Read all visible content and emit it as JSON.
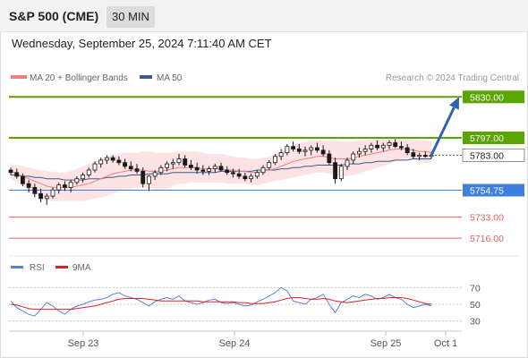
{
  "header": {
    "instrument": "S&P 500 (CME)",
    "timeframe": "30 MIN",
    "datetime": "Wednesday, September 25, 2024 7:11:40 AM CET"
  },
  "legend": {
    "ma20_label": "MA 20 + Bollinger Bands",
    "ma50_label": "MA 50",
    "credit": "Research © 2024 Trading Central",
    "rsi_label": "RSI",
    "rsi_ma_label": "9MA"
  },
  "colors": {
    "candle": "#1a1a1a",
    "ma20": "#f08080",
    "ma50": "#3b5b92",
    "bollinger_fill": "#fde3e3",
    "resistance": "#5aa500",
    "support_blue": "#3f7fe0",
    "support_red": "#e06060",
    "arrow": "#2e63b0",
    "rsi": "#5a7fd6",
    "rsi_ma": "#e02020"
  },
  "chart_data": [
    {
      "type": "candlestick",
      "title": "",
      "ylim": [
        5706,
        5836
      ],
      "x_ticks": [
        "Sep 23",
        "Sep 24",
        "Sep 25",
        "Oct 1"
      ],
      "levels": [
        {
          "value": 5830.0,
          "label": "5830.00",
          "kind": "resistance"
        },
        {
          "value": 5797.0,
          "label": "5797.00",
          "kind": "resistance"
        },
        {
          "value": 5783.0,
          "label": "5783.00",
          "kind": "last"
        },
        {
          "value": 5754.75,
          "label": "5754.75",
          "kind": "support_strong"
        },
        {
          "value": 5733.0,
          "label": "5733.00",
          "kind": "support"
        },
        {
          "value": 5716.0,
          "label": "5716.00",
          "kind": "support"
        }
      ],
      "forecast": {
        "from": 5783.0,
        "to": 5830.0
      },
      "candles": [
        [
          5771,
          5773,
          5767,
          5769
        ],
        [
          5769,
          5772,
          5764,
          5766
        ],
        [
          5766,
          5768,
          5758,
          5760
        ],
        [
          5760,
          5763,
          5753,
          5757
        ],
        [
          5757,
          5760,
          5749,
          5752
        ],
        [
          5752,
          5756,
          5745,
          5748
        ],
        [
          5748,
          5752,
          5743,
          5750
        ],
        [
          5750,
          5757,
          5748,
          5755
        ],
        [
          5755,
          5761,
          5752,
          5759
        ],
        [
          5759,
          5762,
          5754,
          5757
        ],
        [
          5757,
          5763,
          5753,
          5761
        ],
        [
          5761,
          5766,
          5759,
          5764
        ],
        [
          5764,
          5769,
          5761,
          5767
        ],
        [
          5767,
          5773,
          5765,
          5771
        ],
        [
          5771,
          5778,
          5769,
          5776
        ],
        [
          5776,
          5781,
          5773,
          5779
        ],
        [
          5779,
          5783,
          5776,
          5781
        ],
        [
          5781,
          5783,
          5777,
          5779
        ],
        [
          5779,
          5782,
          5775,
          5777
        ],
        [
          5777,
          5780,
          5772,
          5774
        ],
        [
          5774,
          5778,
          5770,
          5772
        ],
        [
          5772,
          5776,
          5768,
          5770
        ],
        [
          5770,
          5773,
          5757,
          5760
        ],
        [
          5760,
          5767,
          5754,
          5766
        ],
        [
          5766,
          5771,
          5763,
          5769
        ],
        [
          5769,
          5775,
          5767,
          5773
        ],
        [
          5773,
          5778,
          5770,
          5776
        ],
        [
          5776,
          5780,
          5772,
          5777
        ],
        [
          5777,
          5784,
          5775,
          5780
        ],
        [
          5780,
          5783,
          5773,
          5775
        ],
        [
          5775,
          5779,
          5771,
          5773
        ],
        [
          5773,
          5777,
          5768,
          5771
        ],
        [
          5771,
          5775,
          5767,
          5770
        ],
        [
          5770,
          5774,
          5767,
          5772
        ],
        [
          5772,
          5776,
          5769,
          5774
        ],
        [
          5774,
          5777,
          5770,
          5771
        ],
        [
          5771,
          5774,
          5767,
          5769
        ],
        [
          5769,
          5772,
          5765,
          5768
        ],
        [
          5768,
          5772,
          5764,
          5766
        ],
        [
          5766,
          5769,
          5762,
          5764
        ],
        [
          5764,
          5768,
          5761,
          5766
        ],
        [
          5766,
          5771,
          5764,
          5769
        ],
        [
          5769,
          5775,
          5767,
          5773
        ],
        [
          5773,
          5779,
          5771,
          5777
        ],
        [
          5777,
          5784,
          5775,
          5782
        ],
        [
          5782,
          5788,
          5779,
          5785
        ],
        [
          5785,
          5792,
          5783,
          5790
        ],
        [
          5790,
          5794,
          5786,
          5788
        ],
        [
          5788,
          5792,
          5784,
          5786
        ],
        [
          5786,
          5790,
          5782,
          5787
        ],
        [
          5787,
          5791,
          5783,
          5789
        ],
        [
          5789,
          5793,
          5785,
          5787
        ],
        [
          5787,
          5791,
          5782,
          5784
        ],
        [
          5784,
          5787,
          5775,
          5777
        ],
        [
          5777,
          5781,
          5760,
          5764
        ],
        [
          5764,
          5776,
          5762,
          5774
        ],
        [
          5774,
          5781,
          5771,
          5779
        ],
        [
          5779,
          5786,
          5776,
          5784
        ],
        [
          5784,
          5789,
          5781,
          5786
        ],
        [
          5786,
          5791,
          5783,
          5788
        ],
        [
          5788,
          5793,
          5785,
          5791
        ],
        [
          5791,
          5795,
          5787,
          5789
        ],
        [
          5789,
          5793,
          5786,
          5791
        ],
        [
          5791,
          5795,
          5788,
          5793
        ],
        [
          5793,
          5796,
          5789,
          5790
        ],
        [
          5790,
          5794,
          5787,
          5789
        ],
        [
          5789,
          5792,
          5783,
          5785
        ],
        [
          5785,
          5788,
          5780,
          5782
        ],
        [
          5782,
          5785,
          5779,
          5783
        ],
        [
          5783,
          5786,
          5781,
          5782
        ],
        [
          5782,
          5785,
          5780,
          5783
        ]
      ],
      "ma20": [
        5770,
        5768,
        5766,
        5764,
        5762,
        5760,
        5758,
        5757,
        5757,
        5757,
        5757,
        5758,
        5759,
        5760,
        5762,
        5764,
        5766,
        5768,
        5769,
        5770,
        5771,
        5771,
        5771,
        5770,
        5770,
        5770,
        5771,
        5772,
        5773,
        5773,
        5773,
        5773,
        5772,
        5772,
        5772,
        5772,
        5771,
        5771,
        5770,
        5770,
        5769,
        5769,
        5770,
        5771,
        5772,
        5774,
        5776,
        5778,
        5779,
        5780,
        5781,
        5782,
        5782,
        5781,
        5780,
        5780,
        5780,
        5781,
        5782,
        5783,
        5784,
        5785,
        5786,
        5787,
        5788,
        5788,
        5788,
        5787,
        5786,
        5786,
        5785
      ],
      "bb_upper": [
        5776,
        5775,
        5774,
        5773,
        5772,
        5771,
        5770,
        5770,
        5769,
        5769,
        5770,
        5772,
        5774,
        5776,
        5778,
        5780,
        5782,
        5783,
        5784,
        5785,
        5785,
        5785,
        5786,
        5786,
        5785,
        5785,
        5785,
        5785,
        5786,
        5786,
        5786,
        5786,
        5785,
        5784,
        5784,
        5784,
        5783,
        5782,
        5781,
        5781,
        5780,
        5780,
        5781,
        5782,
        5784,
        5786,
        5789,
        5791,
        5793,
        5794,
        5795,
        5795,
        5795,
        5795,
        5795,
        5794,
        5794,
        5794,
        5795,
        5795,
        5796,
        5796,
        5797,
        5797,
        5797,
        5797,
        5797,
        5796,
        5795,
        5795,
        5794
      ],
      "bb_lower": [
        5764,
        5761,
        5758,
        5755,
        5752,
        5749,
        5747,
        5746,
        5746,
        5746,
        5746,
        5746,
        5746,
        5747,
        5748,
        5749,
        5750,
        5752,
        5754,
        5755,
        5756,
        5757,
        5757,
        5756,
        5755,
        5755,
        5756,
        5758,
        5760,
        5760,
        5761,
        5761,
        5761,
        5761,
        5761,
        5761,
        5760,
        5760,
        5760,
        5760,
        5759,
        5759,
        5760,
        5761,
        5762,
        5763,
        5764,
        5765,
        5766,
        5767,
        5768,
        5769,
        5769,
        5768,
        5766,
        5766,
        5766,
        5767,
        5768,
        5770,
        5771,
        5773,
        5774,
        5776,
        5778,
        5779,
        5780,
        5779,
        5778,
        5777,
        5777
      ],
      "ma50": [
        5767,
        5767,
        5766,
        5766,
        5765,
        5765,
        5764,
        5764,
        5764,
        5763,
        5763,
        5763,
        5763,
        5764,
        5764,
        5764,
        5765,
        5765,
        5766,
        5766,
        5767,
        5767,
        5767,
        5768,
        5768,
        5768,
        5768,
        5769,
        5769,
        5769,
        5769,
        5769,
        5769,
        5769,
        5769,
        5770,
        5770,
        5770,
        5770,
        5770,
        5770,
        5771,
        5771,
        5771,
        5771,
        5772,
        5772,
        5773,
        5773,
        5774,
        5774,
        5775,
        5775,
        5775,
        5775,
        5775,
        5776,
        5776,
        5776,
        5777,
        5777,
        5778,
        5778,
        5778,
        5779,
        5779,
        5779,
        5780,
        5780,
        5780,
        5780
      ]
    },
    {
      "type": "line",
      "title": "",
      "ylim": [
        20,
        80
      ],
      "y_ticks": [
        30,
        50,
        70
      ],
      "series": [
        {
          "name": "RSI",
          "values": [
            54,
            46,
            42,
            38,
            36,
            44,
            52,
            48,
            42,
            38,
            44,
            48,
            50,
            53,
            55,
            56,
            58,
            62,
            64,
            60,
            58,
            56,
            52,
            48,
            53,
            56,
            58,
            56,
            60,
            54,
            52,
            50,
            52,
            55,
            56,
            52,
            51,
            52,
            50,
            48,
            49,
            53,
            56,
            60,
            64,
            70,
            66,
            54,
            52,
            50,
            56,
            58,
            62,
            50,
            40,
            52,
            56,
            60,
            58,
            62,
            60,
            56,
            58,
            62,
            58,
            56,
            50,
            46,
            48,
            50,
            48
          ]
        },
        {
          "name": "9MA",
          "values": [
            50,
            49,
            47,
            45,
            44,
            44,
            44,
            44,
            44,
            44,
            44,
            45,
            46,
            47,
            48,
            50,
            52,
            54,
            56,
            57,
            57,
            57,
            57,
            56,
            55,
            54,
            54,
            54,
            54,
            54,
            54,
            54,
            53,
            53,
            53,
            53,
            53,
            53,
            52,
            52,
            51,
            51,
            51,
            52,
            53,
            55,
            57,
            58,
            58,
            57,
            56,
            56,
            57,
            56,
            54,
            53,
            52,
            53,
            54,
            55,
            56,
            57,
            57,
            58,
            58,
            58,
            57,
            55,
            53,
            51,
            50
          ]
        }
      ]
    }
  ]
}
